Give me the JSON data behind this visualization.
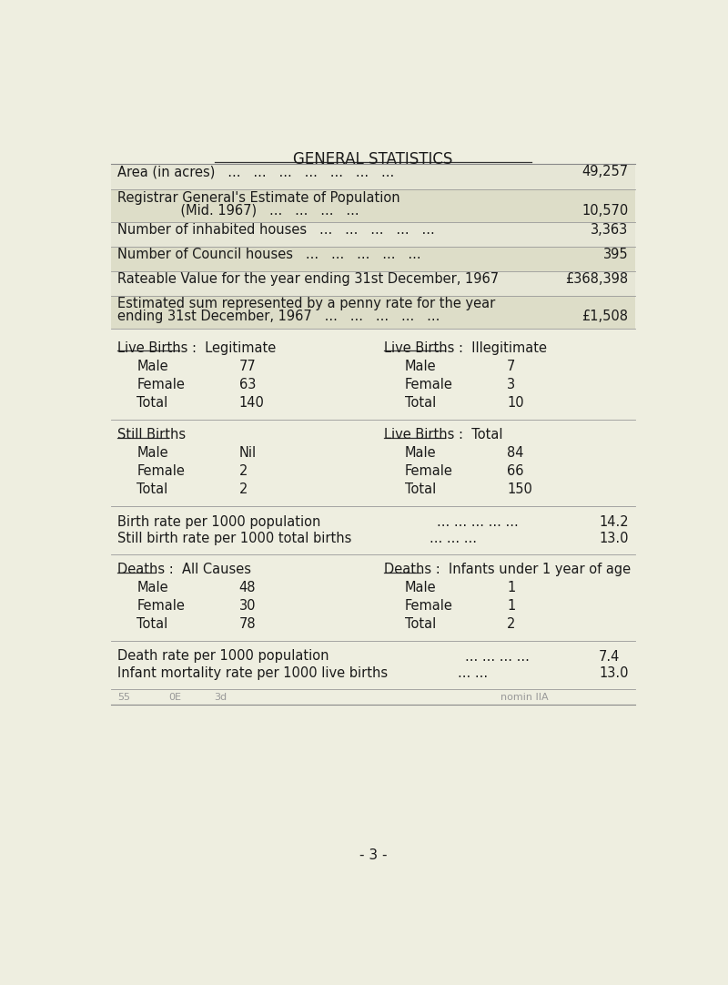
{
  "title": "GENERAL STATISTICS",
  "bg_color": "#eeeee0",
  "row_light": "#e8e8d8",
  "row_dark": "#d8d8c8",
  "text_color": "#1a1a1a",
  "font_family": "Courier New",
  "general_stats": [
    {
      "label": "Area (in acres)  ...  ...  ...  ...  ...  ...  ...",
      "value": "49,257"
    },
    {
      "label": "Registrar General's Estimate of Population\n               (Mid. 1967)   ...  ...  ...  ...",
      "value": "10,570"
    },
    {
      "label": "Number of inhabited houses    ...  ...  ...  ...  ...",
      "value": "3,363"
    },
    {
      "label": "Number of Council houses    ...  ...  ...  ...  ...",
      "value": "395"
    },
    {
      "label": "Rateable Value for the year ending 31st December, 1967",
      "value": "£368,398"
    },
    {
      "label": "Estimated sum represented by a penny rate for the year\nending 31st December, 1967   ...   ...   ...   ...   ...",
      "value": "£1,508"
    }
  ],
  "live_births_legit_header": "Live Births :  Legitimate",
  "live_births_legit_rows": [
    [
      "Male",
      "77"
    ],
    [
      "Female",
      "63"
    ],
    [
      "Total",
      "140"
    ]
  ],
  "live_births_illegit_header": "Live Births :  Illegitimate",
  "live_births_illegit_rows": [
    [
      "Male",
      "7"
    ],
    [
      "Female",
      "3"
    ],
    [
      "Total",
      "10"
    ]
  ],
  "still_births_header": "Still Births",
  "still_births_rows": [
    [
      "Male",
      "Nil"
    ],
    [
      "Female",
      "2"
    ],
    [
      "Total",
      "2"
    ]
  ],
  "live_births_total_header": "Live Births :  Total",
  "live_births_total_rows": [
    [
      "Male",
      "84"
    ],
    [
      "Female",
      "66"
    ],
    [
      "Total",
      "150"
    ]
  ],
  "rates1": [
    [
      "Birth rate per 1000 population",
      "... ... ... ... ...",
      "14.2"
    ],
    [
      "Still birth rate per 1000 total births",
      "... ... ...",
      "13.0"
    ]
  ],
  "deaths_all_header": "Deaths :  All Causes",
  "deaths_all_rows": [
    [
      "Male",
      "48"
    ],
    [
      "Female",
      "30"
    ],
    [
      "Total",
      "78"
    ]
  ],
  "deaths_infants_header": "Deaths :  Infants under 1 year of age",
  "deaths_infants_rows": [
    [
      "Male",
      "1"
    ],
    [
      "Female",
      "1"
    ],
    [
      "Total",
      "2"
    ]
  ],
  "rates2": [
    [
      "Death rate per 1000 population",
      "... ... ... ...",
      "7.4"
    ],
    [
      "Infant mortality rate per 1000 live births",
      "... ...",
      "13.0"
    ]
  ],
  "footer_cols": [
    "55",
    "0E",
    "3d",
    "nomin IIA"
  ],
  "page_number": "- 3 -"
}
